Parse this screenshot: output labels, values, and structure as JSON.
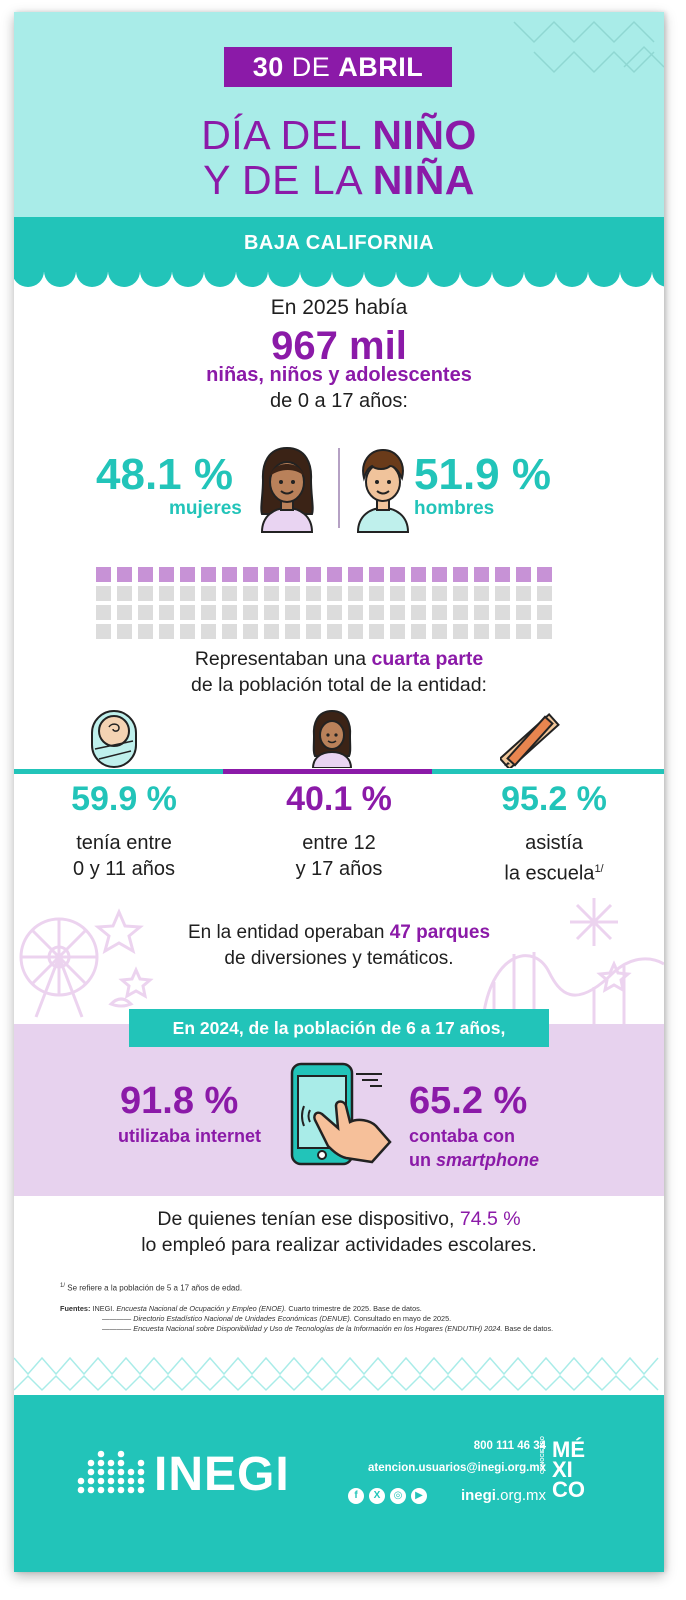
{
  "header": {
    "date_num": "30",
    "date_word": "DE",
    "date_month": "ABRIL",
    "title_line1_a": "DÍA DEL",
    "title_line1_b": "NIÑO",
    "title_line2_a": "Y DE LA",
    "title_line2_b": "NIÑA"
  },
  "state": "BAJA CALIFORNIA",
  "population": {
    "intro": "En 2025 había",
    "amount": "967 mil",
    "who": "niñas, niños y adolescentes",
    "ages": "de 0 a 17 años:"
  },
  "gender": {
    "female_pct": "48.1 %",
    "female_label": "mujeres",
    "male_pct": "51.9 %",
    "male_label": "hombres"
  },
  "waffle": {
    "filled_rows": 1,
    "total_rows": 4,
    "filled_fraction": 0.25
  },
  "share": {
    "line1_a": "Representaban una",
    "line1_b": "cuarta parte",
    "line2": "de la población total de la entidad:"
  },
  "ages": [
    {
      "pct": "59.9 %",
      "line1": "tenía entre",
      "line2": "0 y 11 años"
    },
    {
      "pct": "40.1 %",
      "line1": "entre 12",
      "line2": "y 17 años"
    },
    {
      "pct": "95.2 %",
      "line1": "asistía",
      "line2": "la escuela",
      "note": "1/"
    }
  ],
  "parks": {
    "line1_a": "En la entidad operaban",
    "line1_b": "47 parques",
    "line2": "de diversiones y temáticos."
  },
  "tech": {
    "banner": "En 2024, de la población de 6 a 17 años,",
    "internet_pct": "91.8 %",
    "internet_label": "utilizaba internet",
    "phone_pct": "65.2 %",
    "phone_label1": "contaba con",
    "phone_label2_a": "un",
    "phone_label2_b": "smartphone"
  },
  "usage": {
    "line1_a": "De quienes tenían ese dispositivo,",
    "line1_b": "74.5 %",
    "line2": "lo empleó para realizar actividades escolares."
  },
  "footnote": {
    "mark": "1/",
    "text": "Se refiere a la población de 5 a 17 años de edad."
  },
  "sources": {
    "label": "Fuentes:",
    "org": "INEGI.",
    "s1_title": "Encuesta Nacional de Ocupación y Empleo (ENOE).",
    "s1_rest": "Cuarto trimestre de 2025. Base de datos.",
    "s2_title": "Directorio Estadístico Nacional de Unidades Económicas (DENUE).",
    "s2_rest": "Consultado en mayo de 2025.",
    "s3_title": "Encuesta Nacional sobre Disponibilidad y Uso de Tecnologías de la Información en los Hogares (ENDUTIH) 2024.",
    "s3_rest": "Base de datos."
  },
  "footer": {
    "logo_text": "INEGI",
    "phone": "800 111 46 34",
    "email": "atencion.usuarios@inegi.org.mx",
    "web_bold": "inegi",
    "web_rest": ".org.mx",
    "mexico_small": "CONOCIENDO",
    "mexico_l1": "MÉ",
    "mexico_l2": "XI",
    "mexico_l3": "CO"
  },
  "colors": {
    "purple": "#8b1aa8",
    "teal": "#22c4b9",
    "mint": "#a9ece8",
    "lilac": "#e7d2ee",
    "waffle_on": "#c792d6",
    "waffle_off": "#dcdcdc"
  },
  "icons": [
    "girl-icon",
    "boy-icon",
    "baby-icon",
    "teen-girl-icon",
    "pencil-ruler-icon",
    "smartphone-hand-icon",
    "ferris-wheel-icon",
    "roller-coaster-icon",
    "firework-icon",
    "star-icon",
    "facebook-icon",
    "x-icon",
    "instagram-icon",
    "youtube-icon"
  ]
}
